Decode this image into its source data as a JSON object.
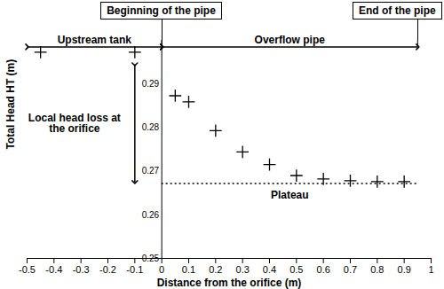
{
  "chart_data": {
    "type": "scatter",
    "x_label": "Distance from the orifice (m)",
    "y_label": "Total Head HT (m)",
    "x": [
      -0.45,
      -0.1,
      0.05,
      0.1,
      0.2,
      0.3,
      0.4,
      0.5,
      0.6,
      0.7,
      0.8,
      0.9
    ],
    "values": [
      0.2973,
      0.2973,
      0.2873,
      0.2859,
      0.2793,
      0.2744,
      0.2715,
      0.269,
      0.2682,
      0.2678,
      0.2676,
      0.2676
    ],
    "color": "#000000",
    "marker": "plus",
    "xlim": [
      -0.5,
      1
    ],
    "xticks": [
      -0.5,
      -0.4,
      -0.3,
      -0.2,
      -0.1,
      0,
      0.1,
      0.2,
      0.3,
      0.4,
      0.5,
      0.6,
      0.7,
      0.8,
      0.9,
      1
    ],
    "ylim": [
      0.25,
      0.3
    ],
    "yticks": [
      0.25,
      0.26,
      0.27,
      0.28,
      0.29
    ],
    "grid": false,
    "annotations": [
      {
        "text": "Upstream tank",
        "x": [
          -0.5,
          0
        ]
      },
      {
        "text": "Overflow pipe",
        "x": [
          0,
          0.95
        ]
      },
      {
        "text": "Beginning of the pipe",
        "x": 0
      },
      {
        "text": "End of the pipe",
        "x": 0.95
      },
      {
        "text": "Local head loss at the orifice",
        "x": -0.1,
        "y": [
          0.2945,
          0.2675
        ]
      },
      {
        "text": "Plateau",
        "x": [
          0,
          0.95
        ],
        "y": 0.2672
      }
    ]
  }
}
